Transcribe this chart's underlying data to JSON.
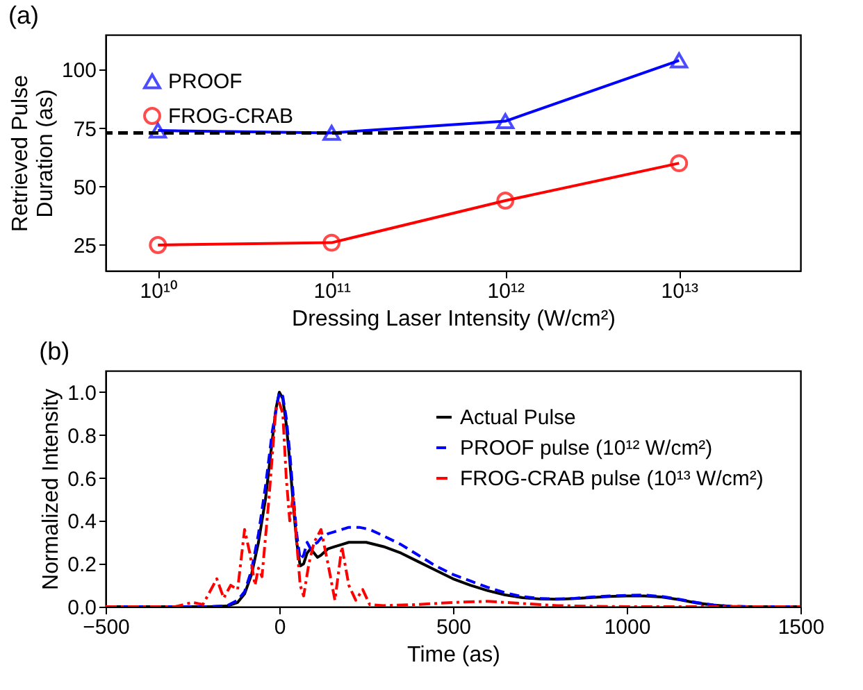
{
  "chart_data": [
    {
      "type": "line",
      "title": "(a)",
      "xlabel": "Dressing Laser Intensity (W/cm²)",
      "ylabel": "Retrieved Pulse Duration (as)",
      "log": "x",
      "legend": "top left",
      "grid": false,
      "x": [
        10000000000.0,
        100000000000.0,
        1000000000000.0,
        10000000000000.0
      ],
      "xlim": [
        5000000000.0,
        50000000000000.0
      ],
      "xticks": [
        {
          "value": 10000000000.0,
          "label": "10¹⁰"
        },
        {
          "value": 100000000000.0,
          "label": "10¹¹"
        },
        {
          "value": 1000000000000.0,
          "label": "10¹²"
        },
        {
          "value": 10000000000000.0,
          "label": "10¹³"
        }
      ],
      "ylim": [
        14,
        115
      ],
      "yticks": [
        25,
        50,
        75,
        100
      ],
      "series": [
        {
          "name": "PROOF",
          "color": "#0000ff",
          "marker": "triangle",
          "line_style": "solid",
          "values": [
            74,
            73,
            78,
            104
          ]
        },
        {
          "name": "FROG-CRAB",
          "color": "#ff0000",
          "marker": "circle",
          "line_style": "solid",
          "values": [
            25,
            26,
            44,
            60
          ]
        }
      ],
      "ref_lines": [
        {
          "axis": "y",
          "value": 73,
          "color": "#000000",
          "line_style": "dashed"
        }
      ]
    },
    {
      "type": "line",
      "title": "(b)",
      "xlabel": "Time (as)",
      "ylabel": "Normalized Intensity",
      "legend": "top right",
      "grid": false,
      "marker": "none",
      "xlim": [
        -500,
        1500
      ],
      "xticks": [
        -500,
        0,
        500,
        1000,
        1500
      ],
      "ylim": [
        0,
        1.1
      ],
      "yticks": [
        {
          "value": 0,
          "label": "0.0"
        },
        0.2,
        0.4,
        0.6,
        0.8,
        {
          "value": 1,
          "label": "1.0"
        }
      ],
      "series": [
        {
          "name": "Actual Pulse",
          "color": "#000000",
          "line_style": "solid",
          "x": [
            -500,
            -200,
            -150,
            -120,
            -100,
            -80,
            -60,
            -40,
            -20,
            -10,
            0,
            10,
            20,
            30,
            40,
            50,
            60,
            70,
            80,
            90,
            100,
            110,
            120,
            140,
            160,
            180,
            200,
            250,
            300,
            350,
            400,
            450,
            500,
            550,
            600,
            650,
            700,
            750,
            800,
            850,
            900,
            950,
            1000,
            1050,
            1100,
            1150,
            1200,
            1250,
            1300,
            1350,
            1500
          ],
          "values": [
            0,
            0,
            0.003,
            0.02,
            0.06,
            0.15,
            0.3,
            0.5,
            0.78,
            0.92,
            1.0,
            0.97,
            0.85,
            0.68,
            0.48,
            0.3,
            0.19,
            0.2,
            0.25,
            0.27,
            0.25,
            0.23,
            0.24,
            0.27,
            0.28,
            0.29,
            0.3,
            0.3,
            0.28,
            0.25,
            0.21,
            0.17,
            0.13,
            0.1,
            0.075,
            0.055,
            0.042,
            0.036,
            0.035,
            0.038,
            0.043,
            0.048,
            0.05,
            0.05,
            0.045,
            0.033,
            0.018,
            0.007,
            0.002,
            0,
            0
          ]
        },
        {
          "name": "PROOF pulse (10¹² W/cm²)",
          "color": "#0000ff",
          "line_style": "dashed",
          "x": [
            -500,
            -200,
            -150,
            -120,
            -100,
            -80,
            -60,
            -40,
            -20,
            0,
            10,
            20,
            30,
            40,
            50,
            60,
            70,
            80,
            90,
            100,
            110,
            120,
            140,
            160,
            200,
            230,
            260,
            300,
            350,
            400,
            450,
            500,
            550,
            600,
            650,
            700,
            750,
            800,
            850,
            900,
            950,
            1000,
            1050,
            1100,
            1150,
            1200,
            1250,
            1300,
            1350,
            1500
          ],
          "values": [
            0,
            0,
            0.005,
            0.03,
            0.07,
            0.17,
            0.34,
            0.56,
            0.82,
            1.0,
            0.98,
            0.88,
            0.72,
            0.52,
            0.34,
            0.22,
            0.24,
            0.3,
            0.27,
            0.29,
            0.3,
            0.32,
            0.34,
            0.35,
            0.37,
            0.37,
            0.36,
            0.33,
            0.29,
            0.24,
            0.19,
            0.15,
            0.12,
            0.09,
            0.065,
            0.047,
            0.038,
            0.036,
            0.039,
            0.045,
            0.05,
            0.053,
            0.054,
            0.048,
            0.035,
            0.02,
            0.008,
            0.002,
            0,
            0
          ]
        },
        {
          "name": "FROG-CRAB pulse (10¹³ W/cm²)",
          "color": "#ff0000",
          "line_style": "dashdot",
          "x": [
            -500,
            -300,
            -250,
            -220,
            -180,
            -160,
            -140,
            -120,
            -100,
            -85,
            -70,
            -60,
            -50,
            -30,
            -10,
            0,
            10,
            20,
            30,
            40,
            50,
            60,
            70,
            85,
            100,
            120,
            140,
            160,
            180,
            200,
            220,
            240,
            260,
            300,
            400,
            500,
            600,
            700,
            800,
            900,
            1000,
            1500
          ],
          "values": [
            0,
            0,
            0.02,
            0.01,
            0.13,
            0.04,
            0.1,
            0.08,
            0.36,
            0.25,
            0.1,
            0.18,
            0.14,
            0.5,
            0.92,
            0.95,
            0.9,
            0.6,
            0.4,
            0.52,
            0.3,
            0.1,
            0.05,
            0.2,
            0.3,
            0.36,
            0.2,
            0.03,
            0.28,
            0.1,
            0.03,
            0.08,
            0.01,
            0.005,
            0.01,
            0.02,
            0.025,
            0.015,
            0.005,
            0.002,
            0,
            0
          ]
        }
      ]
    }
  ]
}
